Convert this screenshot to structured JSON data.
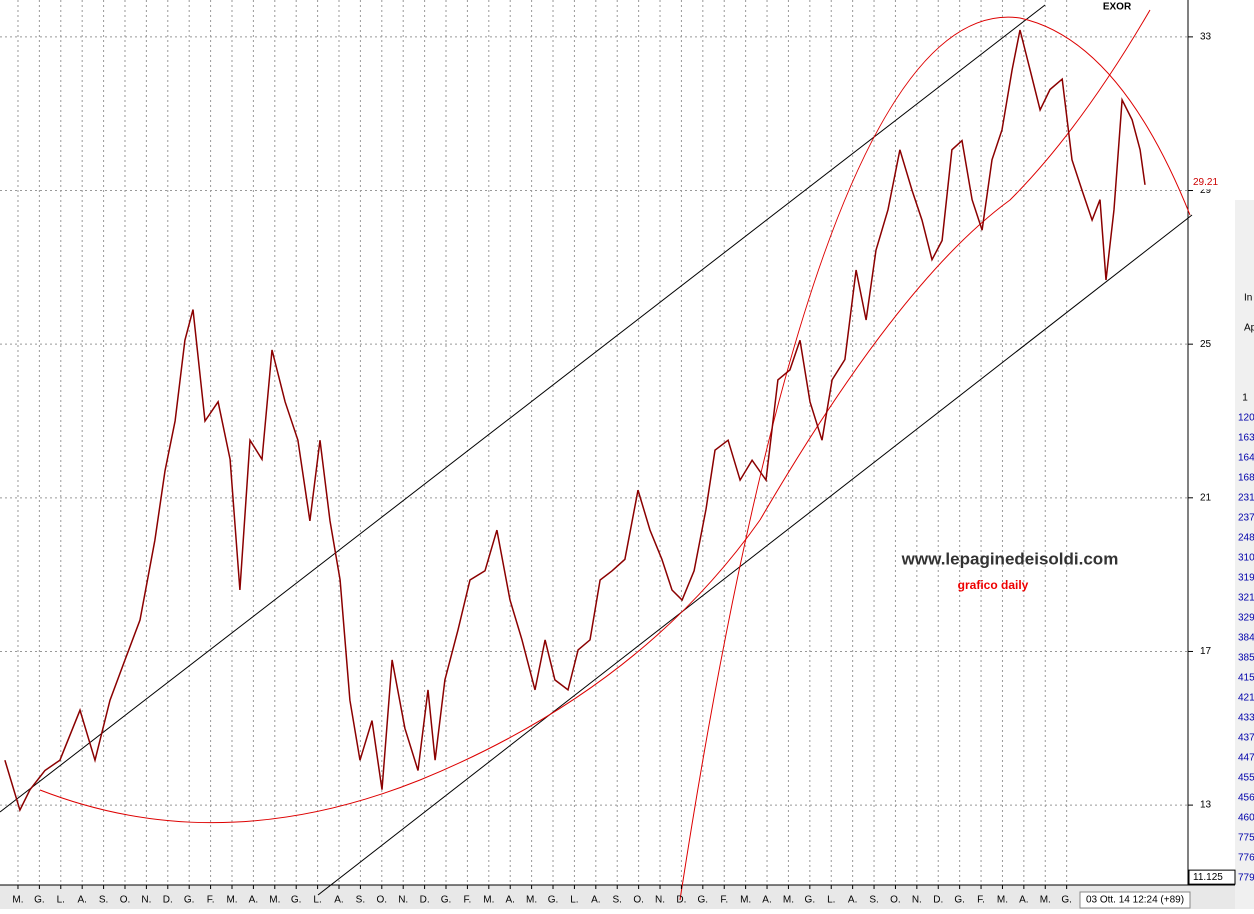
{
  "chart_data": {
    "type": "line",
    "title": "EXOR",
    "annotations": [
      "www.lepaginedeisoldi.com",
      "grafico daily"
    ],
    "last_price": 29.21,
    "cursor_value": 11.125,
    "timestamp": "03 Ott. 14 12:24 (+89)",
    "x": [
      -0.61,
      0.09,
      0.56,
      1.26,
      1.96,
      2.9,
      3.6,
      4.3,
      5.0,
      5.7,
      6.4,
      6.87,
      7.34,
      7.8,
      8.18,
      8.74,
      9.35,
      9.91,
      10.37,
      10.84,
      11.4,
      11.87,
      12.48,
      13.08,
      13.64,
      14.11,
      14.58,
      15.05,
      15.51,
      15.98,
      16.54,
      17.01,
      17.48,
      18.08,
      18.69,
      19.16,
      19.49,
      19.95,
      20.56,
      21.12,
      21.82,
      22.38,
      22.99,
      23.55,
      24.16,
      24.63,
      25.09,
      25.7,
      26.17,
      26.73,
      27.2,
      27.76,
      28.36,
      28.97,
      29.53,
      30.09,
      30.56,
      31.03,
      31.59,
      32.15,
      32.57,
      33.18,
      33.74,
      34.3,
      34.95,
      35.51,
      36.07,
      36.54,
      37.01,
      37.57,
      38.04,
      38.64,
      39.16,
      39.63,
      40.09,
      40.65,
      41.21,
      41.78,
      42.24,
      42.71,
      43.18,
      43.64,
      44.11,
      44.58,
      45.05,
      45.51,
      45.98,
      46.45,
      46.82,
      47.29,
      47.76,
      48.22,
      48.79,
      49.25,
      49.72,
      50.19,
      50.56,
      50.84,
      51.21,
      51.59,
      52.06,
      52.43,
      52.66
    ],
    "series": [
      {
        "name": "EXOR",
        "color": "#8b0000",
        "values": [
          14.17,
          12.87,
          13.4,
          13.9,
          14.17,
          15.47,
          14.17,
          15.73,
          16.78,
          17.82,
          19.9,
          21.7,
          23.0,
          25.1,
          25.9,
          23.0,
          23.5,
          22.0,
          18.6,
          22.5,
          22.0,
          24.85,
          23.5,
          22.5,
          20.4,
          22.5,
          20.4,
          18.86,
          15.73,
          14.17,
          15.2,
          13.4,
          16.78,
          15.0,
          13.9,
          16.0,
          14.17,
          16.26,
          17.56,
          18.86,
          19.1,
          20.16,
          18.34,
          17.3,
          16.0,
          17.3,
          16.26,
          16.0,
          17.04,
          17.3,
          18.86,
          19.1,
          19.4,
          21.2,
          20.16,
          19.4,
          18.6,
          18.34,
          19.1,
          20.7,
          22.24,
          22.5,
          21.46,
          21.98,
          21.46,
          24.07,
          24.33,
          25.1,
          23.5,
          22.5,
          24.07,
          24.6,
          26.93,
          25.63,
          27.45,
          28.5,
          30.06,
          29.0,
          28.23,
          27.2,
          27.7,
          30.06,
          30.3,
          28.76,
          27.97,
          29.8,
          30.58,
          32.14,
          33.18,
          32.14,
          31.1,
          31.63,
          31.9,
          29.8,
          29.0,
          28.23,
          28.76,
          26.67,
          28.5,
          31.36,
          30.84,
          30.06,
          29.15
        ]
      }
    ],
    "xlim": [
      -0.84,
      54.67
    ],
    "ylim": [
      10.92,
      33.96
    ],
    "yticks": [
      13,
      17,
      21,
      25,
      29,
      33
    ],
    "xticks": [
      {
        "value": 0,
        "label": "M."
      },
      {
        "value": 1,
        "label": "G."
      },
      {
        "value": 2,
        "label": "L."
      },
      {
        "value": 3,
        "label": "A."
      },
      {
        "value": 4,
        "label": "S."
      },
      {
        "value": 5,
        "label": "O."
      },
      {
        "value": 6,
        "label": "N."
      },
      {
        "value": 7,
        "label": "D."
      },
      {
        "value": 8,
        "label": "G."
      },
      {
        "value": 9,
        "label": "F."
      },
      {
        "value": 10,
        "label": "M."
      },
      {
        "value": 11,
        "label": "A."
      },
      {
        "value": 12,
        "label": "M."
      },
      {
        "value": 13,
        "label": "G."
      },
      {
        "value": 14,
        "label": "L."
      },
      {
        "value": 15,
        "label": "A."
      },
      {
        "value": 16,
        "label": "S."
      },
      {
        "value": 17,
        "label": "O."
      },
      {
        "value": 18,
        "label": "N."
      },
      {
        "value": 19,
        "label": "D."
      },
      {
        "value": 20,
        "label": "G."
      },
      {
        "value": 21,
        "label": "F."
      },
      {
        "value": 22,
        "label": "M."
      },
      {
        "value": 23,
        "label": "A."
      },
      {
        "value": 24,
        "label": "M."
      },
      {
        "value": 25,
        "label": "G."
      },
      {
        "value": 26,
        "label": "L."
      },
      {
        "value": 27,
        "label": "A."
      },
      {
        "value": 28,
        "label": "S."
      },
      {
        "value": 29,
        "label": "O."
      },
      {
        "value": 30,
        "label": "N."
      },
      {
        "value": 31,
        "label": "D."
      },
      {
        "value": 32,
        "label": "G."
      },
      {
        "value": 33,
        "label": "F."
      },
      {
        "value": 34,
        "label": "M."
      },
      {
        "value": 35,
        "label": "A."
      },
      {
        "value": 36,
        "label": "M."
      },
      {
        "value": 37,
        "label": "G."
      },
      {
        "value": 38,
        "label": "L."
      },
      {
        "value": 39,
        "label": "A."
      },
      {
        "value": 40,
        "label": "S."
      },
      {
        "value": 41,
        "label": "O."
      },
      {
        "value": 42,
        "label": "N."
      },
      {
        "value": 43,
        "label": "D."
      },
      {
        "value": 44,
        "label": "G."
      },
      {
        "value": 45,
        "label": "F."
      },
      {
        "value": 46,
        "label": "M."
      },
      {
        "value": 47,
        "label": "A."
      },
      {
        "value": 48,
        "label": "M."
      },
      {
        "value": 49,
        "label": "G."
      }
    ],
    "grid": true
  },
  "side_panel": {
    "header": "1",
    "labels": [
      "In",
      "Ap"
    ],
    "rows": [
      "120",
      "163",
      "164",
      "168",
      "231",
      "237",
      "248",
      "310",
      "319",
      "321",
      "329",
      "384",
      "385",
      "415",
      "421",
      "433",
      "437",
      "447",
      "455",
      "456",
      "460",
      "775",
      "776",
      "779"
    ]
  }
}
